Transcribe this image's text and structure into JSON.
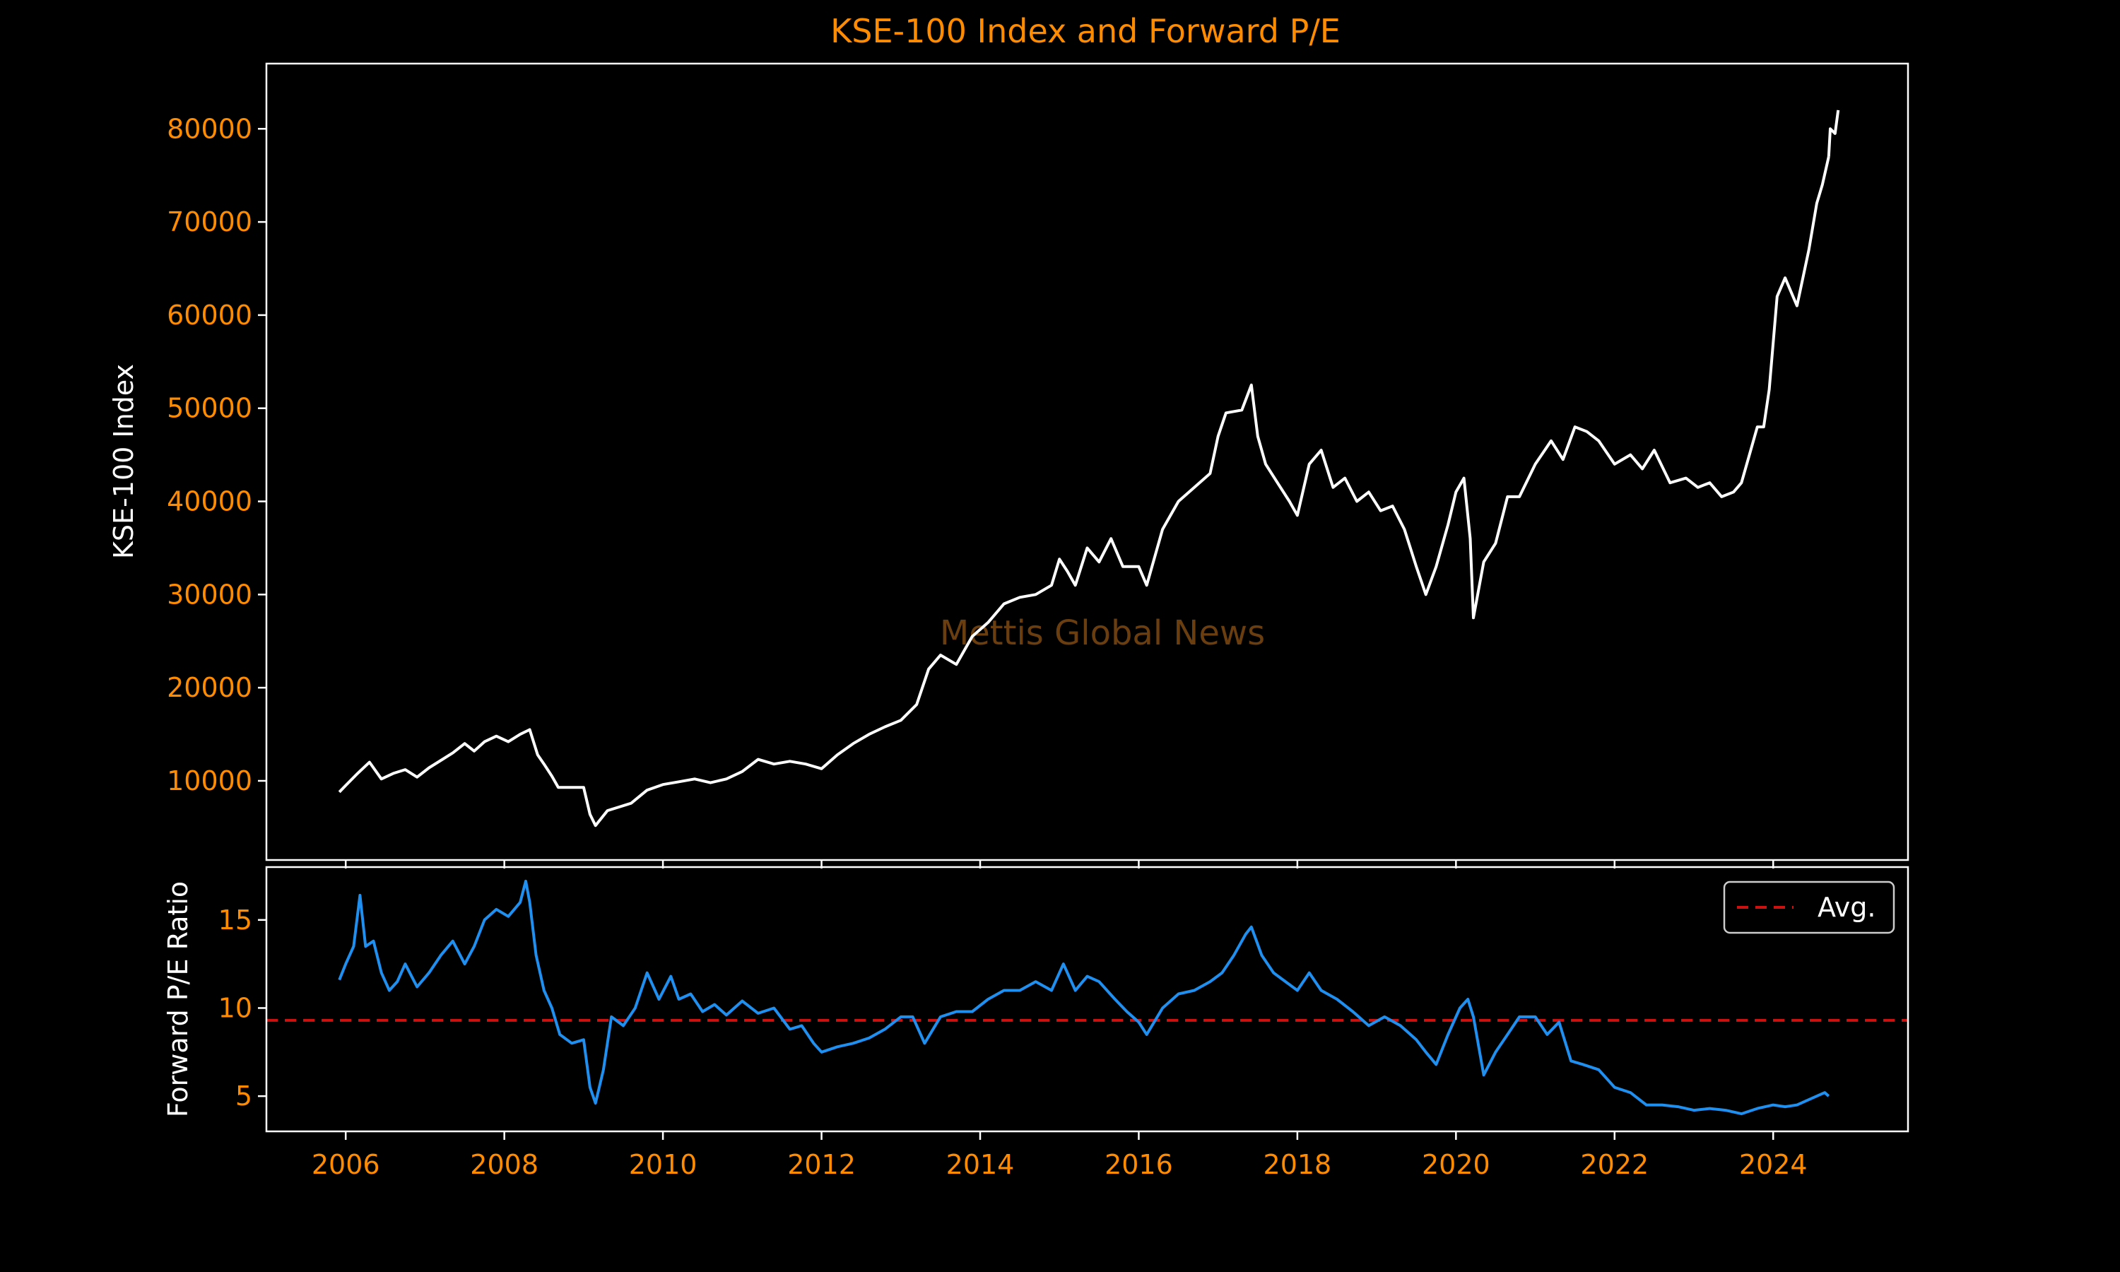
{
  "chart_data": [
    {
      "type": "line",
      "title": "KSE-100 Index and Forward P/E",
      "ylabel": "KSE-100 Index",
      "ylim": [
        1500,
        87000
      ],
      "yticks": [
        10000,
        20000,
        30000,
        40000,
        50000,
        60000,
        70000,
        80000
      ],
      "xlim": [
        2005.0,
        2025.7
      ],
      "xticks": [
        2006,
        2008,
        2010,
        2012,
        2014,
        2016,
        2018,
        2020,
        2022,
        2024
      ],
      "grid": false,
      "color": "#ffffff",
      "watermark": "Mettis Global News",
      "series": [
        {
          "x": [
            2005.92,
            2006.0,
            2006.15,
            2006.3,
            2006.45,
            2006.6,
            2006.75,
            2006.9,
            2007.05,
            2007.2,
            2007.35,
            2007.5,
            2007.62,
            2007.75,
            2007.9,
            2008.05,
            2008.2,
            2008.32,
            2008.42,
            2008.5,
            2008.6,
            2008.68,
            2008.8,
            2009.0,
            2009.08,
            2009.15,
            2009.3,
            2009.45,
            2009.6,
            2009.8,
            2010.0,
            2010.2,
            2010.4,
            2010.6,
            2010.8,
            2011.0,
            2011.2,
            2011.4,
            2011.6,
            2011.8,
            2012.0,
            2012.2,
            2012.4,
            2012.6,
            2012.8,
            2013.0,
            2013.2,
            2013.35,
            2013.5,
            2013.7,
            2013.9,
            2014.1,
            2014.3,
            2014.5,
            2014.7,
            2014.9,
            2015.0,
            2015.1,
            2015.2,
            2015.35,
            2015.5,
            2015.65,
            2015.8,
            2016.0,
            2016.1,
            2016.3,
            2016.5,
            2016.7,
            2016.9,
            2017.0,
            2017.1,
            2017.3,
            2017.42,
            2017.5,
            2017.6,
            2017.75,
            2017.9,
            2018.0,
            2018.15,
            2018.3,
            2018.45,
            2018.6,
            2018.75,
            2018.9,
            2019.05,
            2019.2,
            2019.35,
            2019.5,
            2019.62,
            2019.75,
            2019.9,
            2020.0,
            2020.1,
            2020.18,
            2020.22,
            2020.35,
            2020.5,
            2020.65,
            2020.8,
            2021.0,
            2021.2,
            2021.35,
            2021.5,
            2021.65,
            2021.8,
            2022.0,
            2022.2,
            2022.35,
            2022.5,
            2022.7,
            2022.9,
            2023.05,
            2023.2,
            2023.35,
            2023.5,
            2023.6,
            2023.7,
            2023.8,
            2023.88,
            2023.95,
            2024.05,
            2024.15,
            2024.3,
            2024.45,
            2024.55,
            2024.62,
            2024.7
          ],
          "y": [
            8800,
            9500,
            10800,
            12000,
            10200,
            10800,
            11200,
            10400,
            11400,
            12200,
            13000,
            14000,
            13200,
            14200,
            14800,
            14200,
            15000,
            15500,
            12800,
            11800,
            10500,
            9300,
            9300,
            9300,
            6400,
            5200,
            6800,
            7200,
            7600,
            9000,
            9600,
            9900,
            10200,
            9800,
            10200,
            11000,
            12300,
            11800,
            12100,
            11800,
            11300,
            12800,
            14000,
            15000,
            15800,
            16500,
            18200,
            22000,
            23500,
            22500,
            25500,
            27000,
            29000,
            29700,
            30000,
            31000,
            33800,
            32500,
            31000,
            35000,
            33500,
            36000,
            33000,
            33000,
            31000,
            37000,
            40000,
            41500,
            43000,
            47000,
            49500,
            49800,
            52500,
            47000,
            44000,
            42000,
            40000,
            38500,
            44000,
            45500,
            41500,
            42500,
            40000,
            41000,
            39000,
            39500,
            37000,
            33000,
            30000,
            33000,
            37500,
            41000,
            42500,
            36000,
            27500,
            33500,
            35500,
            40500,
            40500,
            44000,
            46500,
            44500,
            48000,
            47500,
            46500,
            44000,
            45000,
            43500,
            45500,
            42000,
            42500,
            41500,
            42000,
            40500,
            41000,
            42000,
            45000,
            48000,
            48000,
            52000,
            62000,
            64000,
            61000,
            67000,
            72000,
            74000,
            77000
          ],
          "x2": [
            2024.72,
            2024.78,
            2024.82
          ],
          "y2": [
            80000,
            79500,
            82000
          ]
        }
      ]
    },
    {
      "type": "line",
      "ylabel": "Forward P/E Ratio",
      "ylim": [
        3.0,
        18.0
      ],
      "yticks": [
        5,
        10,
        15
      ],
      "xlim": [
        2005.0,
        2025.7
      ],
      "xticks": [
        2006,
        2008,
        2010,
        2012,
        2014,
        2016,
        2018,
        2020,
        2022,
        2024
      ],
      "grid": false,
      "legend_position": "top-right",
      "reference_line": {
        "name": "Avg.",
        "y": 9.3,
        "color": "#cc1111"
      },
      "series": [
        {
          "color": "#1f8ff0",
          "x": [
            2005.92,
            2006.0,
            2006.1,
            2006.18,
            2006.25,
            2006.35,
            2006.45,
            2006.55,
            2006.65,
            2006.75,
            2006.9,
            2007.05,
            2007.2,
            2007.35,
            2007.5,
            2007.62,
            2007.75,
            2007.9,
            2008.05,
            2008.2,
            2008.27,
            2008.32,
            2008.4,
            2008.5,
            2008.6,
            2008.7,
            2008.85,
            2009.0,
            2009.08,
            2009.15,
            2009.25,
            2009.35,
            2009.5,
            2009.65,
            2009.8,
            2009.95,
            2010.1,
            2010.2,
            2010.35,
            2010.5,
            2010.65,
            2010.8,
            2011.0,
            2011.2,
            2011.4,
            2011.6,
            2011.75,
            2011.9,
            2012.0,
            2012.2,
            2012.4,
            2012.6,
            2012.8,
            2013.0,
            2013.15,
            2013.3,
            2013.5,
            2013.7,
            2013.9,
            2014.1,
            2014.3,
            2014.5,
            2014.7,
            2014.9,
            2015.05,
            2015.2,
            2015.35,
            2015.5,
            2015.7,
            2015.85,
            2016.0,
            2016.1,
            2016.3,
            2016.5,
            2016.7,
            2016.9,
            2017.05,
            2017.2,
            2017.35,
            2017.42,
            2017.55,
            2017.7,
            2017.85,
            2018.0,
            2018.15,
            2018.3,
            2018.5,
            2018.7,
            2018.9,
            2019.1,
            2019.3,
            2019.5,
            2019.62,
            2019.75,
            2019.9,
            2020.05,
            2020.15,
            2020.22,
            2020.35,
            2020.5,
            2020.65,
            2020.8,
            2021.0,
            2021.15,
            2021.3,
            2021.45,
            2021.6,
            2021.8,
            2022.0,
            2022.2,
            2022.4,
            2022.6,
            2022.8,
            2023.0,
            2023.2,
            2023.4,
            2023.6,
            2023.8,
            2024.0,
            2024.15,
            2024.3,
            2024.45,
            2024.55,
            2024.65,
            2024.7
          ],
          "y": [
            11.6,
            12.5,
            13.5,
            16.4,
            13.5,
            13.8,
            12.0,
            11.0,
            11.5,
            12.5,
            11.2,
            12.0,
            13.0,
            13.8,
            12.5,
            13.5,
            15.0,
            15.6,
            15.2,
            16.0,
            17.2,
            16.0,
            13.0,
            11.0,
            10.0,
            8.5,
            8.0,
            8.2,
            5.5,
            4.6,
            6.5,
            9.5,
            9.0,
            10.0,
            12.0,
            10.5,
            11.8,
            10.5,
            10.8,
            9.8,
            10.2,
            9.6,
            10.4,
            9.7,
            10.0,
            8.8,
            9.0,
            8.0,
            7.5,
            7.8,
            8.0,
            8.3,
            8.8,
            9.5,
            9.5,
            8.0,
            9.5,
            9.8,
            9.8,
            10.5,
            11.0,
            11.0,
            11.5,
            11.0,
            12.5,
            11.0,
            11.8,
            11.5,
            10.5,
            9.8,
            9.2,
            8.5,
            10.0,
            10.8,
            11.0,
            11.5,
            12.0,
            13.0,
            14.2,
            14.6,
            13.0,
            12.0,
            11.5,
            11.0,
            12.0,
            11.0,
            10.5,
            9.8,
            9.0,
            9.5,
            9.0,
            8.2,
            7.5,
            6.8,
            8.5,
            10.0,
            10.5,
            9.5,
            6.2,
            7.5,
            8.5,
            9.5,
            9.5,
            8.5,
            9.2,
            7.0,
            6.8,
            6.5,
            5.5,
            5.2,
            4.5,
            4.5,
            4.4,
            4.2,
            4.3,
            4.2,
            4.0,
            4.3,
            4.5,
            4.4,
            4.5,
            4.8,
            5.0,
            5.2,
            5.0
          ]
        }
      ]
    }
  ]
}
